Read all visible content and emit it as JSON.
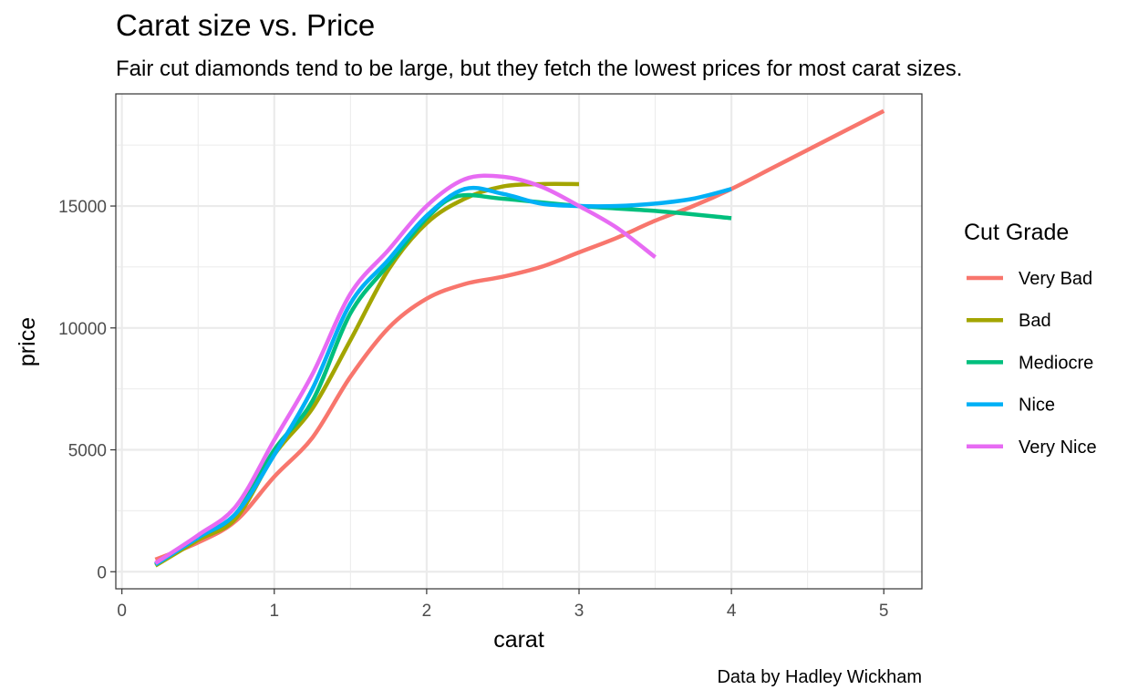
{
  "chart_data": {
    "type": "line",
    "title": "Carat size vs. Price",
    "subtitle": "Fair cut diamonds tend to be large, but they fetch the lowest prices for most carat sizes.",
    "caption": "Data by Hadley Wickham",
    "xlabel": "carat",
    "ylabel": "price",
    "xlim": [
      -0.04,
      5.25
    ],
    "ylim": [
      -700,
      19600
    ],
    "x_ticks": [
      0,
      1,
      2,
      3,
      4,
      5
    ],
    "y_ticks": [
      0,
      5000,
      10000,
      15000
    ],
    "x_tick_labels": [
      "0",
      "1",
      "2",
      "3",
      "4",
      "5"
    ],
    "y_tick_labels": [
      "0",
      "5000",
      "10000",
      "15000"
    ],
    "grid": true,
    "legend": {
      "title": "Cut Grade",
      "position": "right"
    },
    "series": [
      {
        "name": "Very Bad",
        "color": "#F8766D",
        "x": [
          0.22,
          0.5,
          0.75,
          1.0,
          1.25,
          1.5,
          1.75,
          2.0,
          2.25,
          2.5,
          2.75,
          3.0,
          3.25,
          3.5,
          3.75,
          4.0,
          4.25,
          4.5,
          4.75,
          5.0
        ],
        "y": [
          500,
          1200,
          2100,
          3900,
          5500,
          8000,
          10000,
          11200,
          11800,
          12100,
          12500,
          13100,
          13700,
          14400,
          15000,
          15700,
          16500,
          17300,
          18100,
          18900
        ]
      },
      {
        "name": "Bad",
        "color": "#A3A500",
        "x": [
          0.22,
          0.5,
          0.75,
          1.0,
          1.25,
          1.5,
          1.75,
          2.0,
          2.25,
          2.5,
          2.75,
          3.0
        ],
        "y": [
          250,
          1300,
          2200,
          4800,
          6700,
          9500,
          12400,
          14300,
          15300,
          15800,
          15900,
          15900
        ]
      },
      {
        "name": "Mediocre",
        "color": "#00BF7D",
        "x": [
          0.22,
          0.5,
          0.75,
          1.0,
          1.25,
          1.5,
          1.75,
          2.0,
          2.2,
          2.5,
          3.0,
          3.5,
          4.0
        ],
        "y": [
          300,
          1400,
          2400,
          5000,
          7000,
          10600,
          12600,
          14500,
          15400,
          15300,
          15000,
          14800,
          14500
        ]
      },
      {
        "name": "Nice",
        "color": "#00B0F6",
        "x": [
          0.22,
          0.5,
          0.75,
          1.0,
          1.25,
          1.5,
          1.75,
          2.0,
          2.25,
          2.5,
          2.75,
          3.0,
          3.25,
          3.5,
          3.75,
          4.0
        ],
        "y": [
          300,
          1400,
          2400,
          4800,
          7500,
          11000,
          12800,
          14600,
          15700,
          15500,
          15100,
          15000,
          15000,
          15100,
          15300,
          15700
        ]
      },
      {
        "name": "Very Nice",
        "color": "#E76BF3",
        "x": [
          0.22,
          0.5,
          0.75,
          1.0,
          1.25,
          1.5,
          1.75,
          2.0,
          2.25,
          2.5,
          2.75,
          3.0,
          3.25,
          3.5
        ],
        "y": [
          350,
          1500,
          2700,
          5400,
          8100,
          11400,
          13200,
          15000,
          16100,
          16200,
          15800,
          15000,
          14100,
          12900
        ]
      }
    ]
  }
}
